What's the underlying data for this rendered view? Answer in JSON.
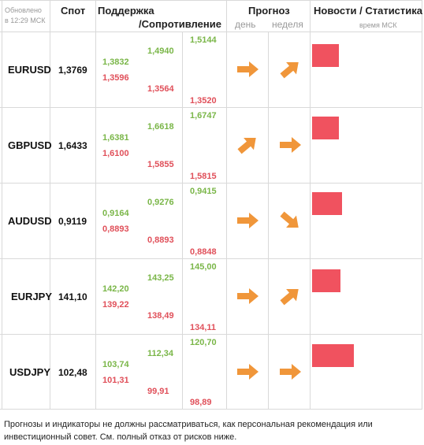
{
  "header": {
    "updated_label": "Обновлено",
    "updated_time": "в 12:29 МСК",
    "spot": "Спот",
    "support": "Поддержка",
    "resistance": "/Сопротивление",
    "forecast": "Прогноз",
    "day": "день",
    "week": "неделя",
    "news": "Новости / Статистика",
    "news_sub": "время МСК"
  },
  "rows": [
    {
      "symbol": "EURUSD",
      "spot": "1,3769",
      "s1": "1,3832",
      "s2": "1,4940",
      "s3": "1,5144",
      "r1": "1,3596",
      "r2": "1,3564",
      "r3": "1,3520",
      "day": "right",
      "week": "up-right",
      "news_level": 0.38
    },
    {
      "symbol": "GBPUSD",
      "spot": "1,6433",
      "s1": "1,6381",
      "s2": "1,6618",
      "s3": "1,6747",
      "r1": "1,6100",
      "r2": "1,5855",
      "r3": "1,5815",
      "day": "up-right",
      "week": "right",
      "news_level": 0.38
    },
    {
      "symbol": "AUDUSD",
      "spot": "0,9119",
      "s1": "0,9164",
      "s2": "0,9276",
      "s3": "0,9415",
      "r1": "0,8893",
      "r2": "0,8893",
      "r3": "0,8848",
      "day": "right",
      "week": "down-right",
      "news_level": 0.42
    },
    {
      "symbol": "EURJPY",
      "spot": "141,10",
      "s1": "142,20",
      "s2": "143,25",
      "s3": "145,00",
      "r1": "139,22",
      "r2": "138,49",
      "r3": "134,11",
      "day": "right",
      "week": "up-right",
      "news_level": 0.4
    },
    {
      "symbol": "USDJPY",
      "spot": "102,48",
      "s1": "103,74",
      "s2": "112,34",
      "s3": "120,70",
      "r1": "101,31",
      "r2": "99,91",
      "r3": "98,89",
      "day": "right",
      "week": "right",
      "news_level": 0.59
    }
  ],
  "colors": {
    "support": "#7ab648",
    "resistance": "#e0505a",
    "arrow": "#f0963a",
    "news_bar": "#f0525f"
  },
  "disclaimer": "Прогнозы и индикаторы не должны рассматриваться, как персональная рекомендация или инвестиционный совет. См. полный отказ от рисков ниже."
}
